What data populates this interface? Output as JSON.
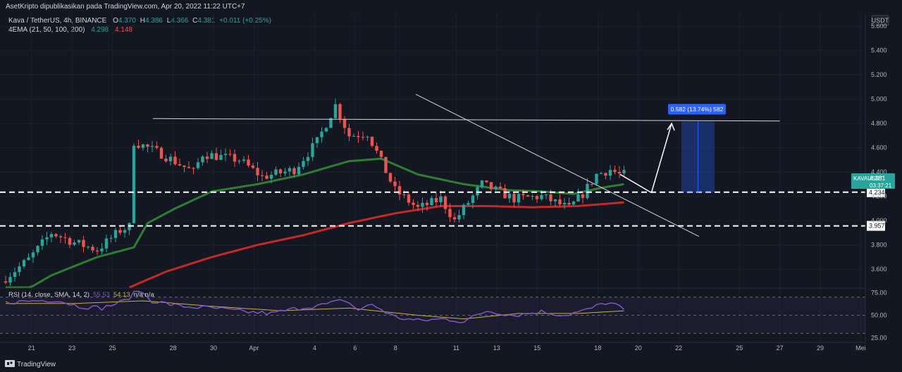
{
  "header": {
    "publish_line": "AsetKripto dipublikasikan pada TradingView.com, Apr 20, 2022 11:22 UTC+7",
    "symbol_line": "Kava / TetherUS, 4h, BINANCE",
    "ohlc": {
      "o": "4.370",
      "h": "4.386",
      "l": "4.366",
      "c": "4.381",
      "chg": "+0.011 (+0.25%)"
    },
    "ema_label": "4EMA (21, 50, 100, 200)",
    "ema_values": [
      "4.298",
      "4.148"
    ]
  },
  "rsi": {
    "label": "RSI (14, close, SMA, 14, 2)",
    "value1": "55.53",
    "value2": "54.13",
    "na": "n/a n/a"
  },
  "footer": {
    "brand": "TradingView"
  },
  "measure": {
    "label": "0.582 (13.74%) 582"
  },
  "price_tag": {
    "symbol": "KAVAUSDT",
    "price": "4.381",
    "countdown": "03:37:21"
  },
  "colors": {
    "bg": "#131722",
    "up": "#26a69a",
    "down": "#ef5350",
    "ema_green": "#2e7d32",
    "ema_red": "#c62828",
    "rsi": "#7e57c2",
    "rsi_ma": "#c9b037",
    "accent": "#2962ff"
  },
  "chart_data": {
    "type": "candlestick",
    "symbol": "KAVA/USDT",
    "interval": "4h",
    "currency": "USDT",
    "y_range": [
      3.45,
      5.7
    ],
    "y_ticks": [
      "5.600",
      "5.400",
      "5.200",
      "5.000",
      "4.800",
      "4.600",
      "4.400",
      "4.200",
      "4.000",
      "3.800",
      "3.600"
    ],
    "x_ticks": [
      "21",
      "23",
      "25",
      "28",
      "30",
      "Apr",
      "4",
      "6",
      "8",
      "11",
      "13",
      "15",
      "18",
      "20",
      "22",
      "25",
      "27",
      "29",
      "Mei"
    ],
    "x_range_days": [
      "Mar 20",
      "May 2"
    ],
    "price_levels": [
      {
        "price": 4.234,
        "label": "4.234"
      },
      {
        "price": 3.957,
        "label": "3.957"
      }
    ],
    "current_price": 4.381,
    "trendlines": [
      {
        "name": "resistance",
        "from": [
          "Mar 27",
          4.84
        ],
        "to": [
          "Apr 27",
          4.82
        ]
      },
      {
        "name": "descending",
        "from": [
          "Apr 9",
          5.04
        ],
        "to": [
          "Apr 23",
          3.87
        ]
      }
    ],
    "projection": {
      "from": [
        "Apr 21",
        4.23
      ],
      "to": [
        "Apr 22",
        4.8
      ],
      "target": 4.816,
      "change": "0.582 (13.74%) 582"
    },
    "candle_path_anchors": [
      [
        0,
        3.5
      ],
      [
        6,
        3.68
      ],
      [
        11,
        3.9
      ],
      [
        16,
        3.82
      ],
      [
        21,
        3.76
      ],
      [
        26,
        3.92
      ],
      [
        28,
        3.95
      ],
      [
        29,
        4.65
      ],
      [
        35,
        4.55
      ],
      [
        42,
        4.4
      ],
      [
        44,
        4.55
      ],
      [
        52,
        4.5
      ],
      [
        57,
        4.36
      ],
      [
        64,
        4.42
      ],
      [
        69,
        4.65
      ],
      [
        73,
        4.95
      ],
      [
        76,
        4.7
      ],
      [
        80,
        4.72
      ],
      [
        86,
        4.25
      ],
      [
        91,
        4.1
      ],
      [
        96,
        4.18
      ],
      [
        99,
        4.0
      ],
      [
        105,
        4.3
      ],
      [
        112,
        4.18
      ],
      [
        118,
        4.2
      ],
      [
        124,
        4.1
      ],
      [
        127,
        4.22
      ],
      [
        130,
        4.38
      ],
      [
        133,
        4.42
      ],
      [
        135,
        4.38
      ]
    ],
    "ema_green_anchors": [
      [
        0,
        3.33
      ],
      [
        10,
        3.55
      ],
      [
        20,
        3.7
      ],
      [
        28,
        3.78
      ],
      [
        31,
        3.98
      ],
      [
        37,
        4.1
      ],
      [
        45,
        4.24
      ],
      [
        55,
        4.3
      ],
      [
        65,
        4.38
      ],
      [
        75,
        4.49
      ],
      [
        82,
        4.51
      ],
      [
        90,
        4.38
      ],
      [
        100,
        4.3
      ],
      [
        110,
        4.25
      ],
      [
        117,
        4.24
      ],
      [
        124,
        4.22
      ],
      [
        130,
        4.27
      ],
      [
        135,
        4.3
      ]
    ],
    "ema_red_anchors": [
      [
        27,
        3.45
      ],
      [
        35,
        3.58
      ],
      [
        45,
        3.7
      ],
      [
        55,
        3.8
      ],
      [
        65,
        3.88
      ],
      [
        75,
        3.98
      ],
      [
        85,
        4.06
      ],
      [
        95,
        4.12
      ],
      [
        105,
        4.12
      ],
      [
        115,
        4.11
      ],
      [
        125,
        4.12
      ],
      [
        135,
        4.15
      ]
    ],
    "rsi_levels": [
      70,
      50,
      30
    ],
    "rsi_ticks": [
      "75.00",
      "50.00",
      "25.00"
    ],
    "rsi_anchors": [
      [
        0,
        64
      ],
      [
        6,
        66
      ],
      [
        11,
        67
      ],
      [
        16,
        60
      ],
      [
        21,
        58
      ],
      [
        26,
        66
      ],
      [
        29,
        78
      ],
      [
        32,
        66
      ],
      [
        38,
        60
      ],
      [
        45,
        58
      ],
      [
        52,
        54
      ],
      [
        58,
        52
      ],
      [
        64,
        58
      ],
      [
        70,
        62
      ],
      [
        74,
        67
      ],
      [
        77,
        56
      ],
      [
        80,
        62
      ],
      [
        85,
        48
      ],
      [
        90,
        44
      ],
      [
        96,
        46
      ],
      [
        100,
        43
      ],
      [
        105,
        55
      ],
      [
        111,
        50
      ],
      [
        117,
        54
      ],
      [
        122,
        50
      ],
      [
        127,
        56
      ],
      [
        131,
        64
      ],
      [
        133,
        62
      ],
      [
        135,
        56
      ]
    ],
    "rsi_ma_anchors": [
      [
        0,
        63
      ],
      [
        15,
        63
      ],
      [
        30,
        66
      ],
      [
        45,
        60
      ],
      [
        60,
        55
      ],
      [
        75,
        58
      ],
      [
        90,
        50
      ],
      [
        100,
        46
      ],
      [
        112,
        52
      ],
      [
        125,
        52
      ],
      [
        135,
        55
      ]
    ]
  }
}
